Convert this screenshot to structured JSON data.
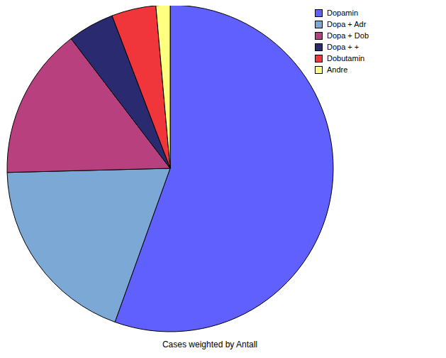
{
  "chart_data": {
    "type": "pie",
    "subtitle": "Cases weighted by Antall",
    "categories": [
      "Dopamin",
      "Dopa + Adr",
      "Dopa + Dob",
      "Dopa + +",
      "Dobutamin",
      "Andre"
    ],
    "values": [
      55.5,
      19.1,
      15.0,
      4.6,
      4.4,
      1.4
    ],
    "colors": [
      "#6060ff",
      "#7ba8d5",
      "#b8407e",
      "#2a2a70",
      "#f0363a",
      "#ffff80"
    ],
    "legend": "top-right"
  }
}
